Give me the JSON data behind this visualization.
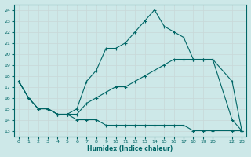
{
  "bg_color": "#cde8e8",
  "line_color": "#006666",
  "grid_color": "#b0d0d0",
  "xlabel": "Humidex (Indice chaleur)",
  "xlim": [
    -0.5,
    23.5
  ],
  "ylim": [
    12.5,
    24.5
  ],
  "yticks": [
    13,
    14,
    15,
    16,
    17,
    18,
    19,
    20,
    21,
    22,
    23,
    24
  ],
  "xticks": [
    0,
    1,
    2,
    3,
    4,
    5,
    6,
    7,
    8,
    9,
    10,
    11,
    12,
    13,
    14,
    15,
    16,
    17,
    18,
    19,
    20,
    22,
    23
  ],
  "line1_x": [
    0,
    1,
    2,
    3,
    4,
    5,
    6,
    7,
    8,
    9,
    10,
    11,
    12,
    13,
    14,
    15,
    16,
    17,
    18,
    19,
    20,
    22,
    23
  ],
  "line1_y": [
    17.5,
    16.0,
    15.0,
    15.0,
    14.5,
    14.5,
    15.0,
    17.5,
    18.5,
    20.5,
    20.5,
    21.0,
    22.0,
    23.0,
    24.0,
    22.5,
    22.0,
    21.5,
    19.5,
    19.5,
    19.5,
    14.0,
    13.0
  ],
  "line2_x": [
    0,
    1,
    2,
    3,
    4,
    5,
    6,
    7,
    8,
    9,
    10,
    11,
    12,
    13,
    14,
    15,
    16,
    17,
    18,
    19,
    20,
    22,
    23
  ],
  "line2_y": [
    17.5,
    16.0,
    15.0,
    15.0,
    14.5,
    14.5,
    14.5,
    15.5,
    16.0,
    16.5,
    17.0,
    17.0,
    17.5,
    18.0,
    18.5,
    19.0,
    19.5,
    19.5,
    19.5,
    19.5,
    19.5,
    17.5,
    13.0
  ],
  "line3_x": [
    0,
    1,
    2,
    3,
    4,
    5,
    6,
    7,
    8,
    9,
    10,
    11,
    12,
    13,
    14,
    15,
    16,
    17,
    18,
    19,
    20,
    22,
    23
  ],
  "line3_y": [
    17.5,
    16.0,
    15.0,
    15.0,
    14.5,
    14.5,
    14.0,
    14.0,
    14.0,
    13.5,
    13.5,
    13.5,
    13.5,
    13.5,
    13.5,
    13.5,
    13.5,
    13.5,
    13.0,
    13.0,
    13.0,
    13.0,
    13.0
  ]
}
